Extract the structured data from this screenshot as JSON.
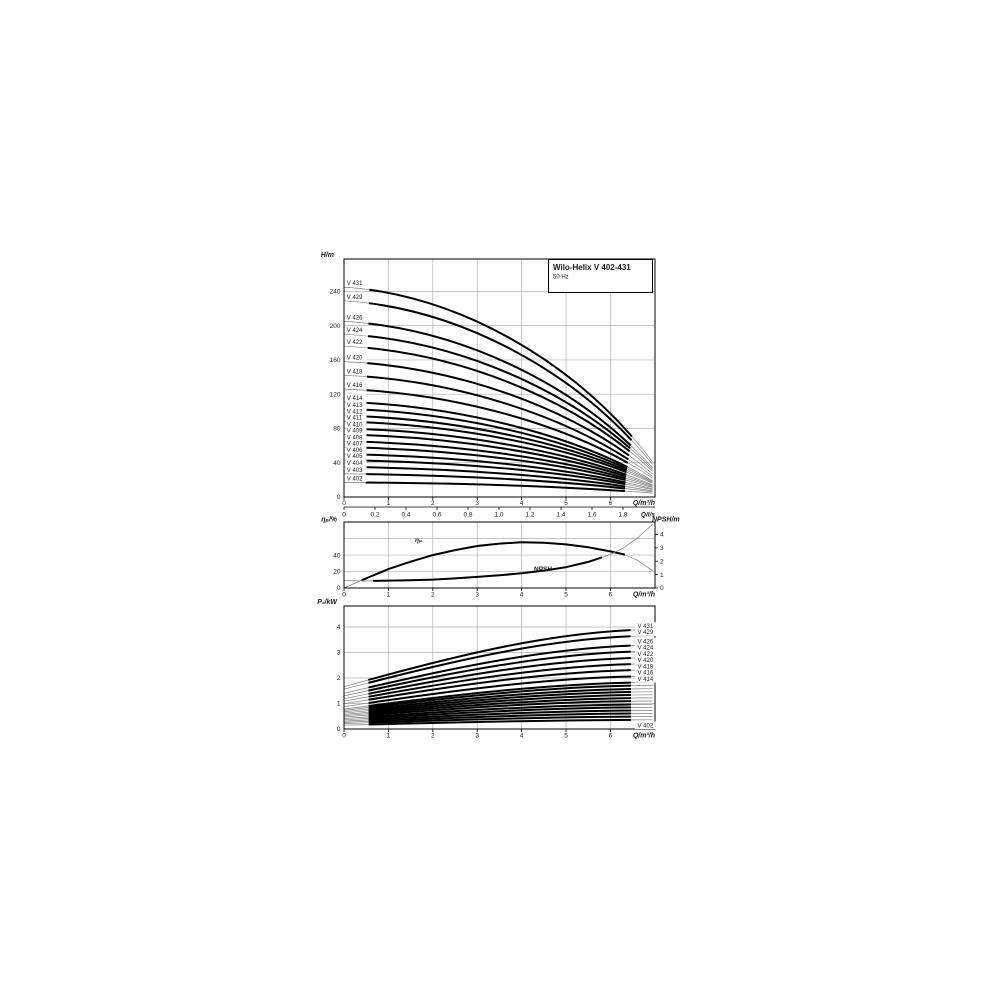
{
  "title_box": {
    "title": "Wilo-Helix V 402-431",
    "subtitle": "50 Hz"
  },
  "chart_data": [
    {
      "id": "head_flow",
      "type": "line",
      "title": "Wilo-Helix V 402-431",
      "subtitle": "50 Hz",
      "ylabel": "H/m",
      "xlabel": "Q/m³/h",
      "xlim": [
        0,
        7
      ],
      "ylim": [
        0,
        278
      ],
      "x_ticks": [
        0,
        1,
        2,
        3,
        4,
        5,
        6
      ],
      "y_ticks": [
        0,
        40,
        80,
        120,
        160,
        200,
        240
      ],
      "grid": "on",
      "secondary_x": {
        "label": "Q/l/s",
        "tick_labels": [
          "0",
          "0,2",
          "0,4",
          "0,6",
          "0,8",
          "1,0",
          "1,2",
          "1,4",
          "1,6",
          "1,8"
        ]
      },
      "series": [
        {
          "name": "V 431",
          "shutoff_head_m": 245,
          "head_at_max_flow_m": 41
        },
        {
          "name": "V 429",
          "shutoff_head_m": 229,
          "head_at_max_flow_m": 38
        },
        {
          "name": "V 426",
          "shutoff_head_m": 205,
          "head_at_max_flow_m": 34
        },
        {
          "name": "V 424",
          "shutoff_head_m": 190,
          "head_at_max_flow_m": 32
        },
        {
          "name": "V 422",
          "shutoff_head_m": 176,
          "head_at_max_flow_m": 30
        },
        {
          "name": "V 420",
          "shutoff_head_m": 158,
          "head_at_max_flow_m": 27
        },
        {
          "name": "V 418",
          "shutoff_head_m": 142,
          "head_at_max_flow_m": 24
        },
        {
          "name": "V 416",
          "shutoff_head_m": 126,
          "head_at_max_flow_m": 22
        },
        {
          "name": "V 414",
          "shutoff_head_m": 111,
          "head_at_max_flow_m": 19
        },
        {
          "name": "V 413",
          "shutoff_head_m": 103,
          "head_at_max_flow_m": 18
        },
        {
          "name": "V 412",
          "shutoff_head_m": 95,
          "head_at_max_flow_m": 17
        },
        {
          "name": "V 411",
          "shutoff_head_m": 88,
          "head_at_max_flow_m": 16
        },
        {
          "name": "V 410",
          "shutoff_head_m": 80,
          "head_at_max_flow_m": 14
        },
        {
          "name": "V 409",
          "shutoff_head_m": 73,
          "head_at_max_flow_m": 13
        },
        {
          "name": "V 408",
          "shutoff_head_m": 65,
          "head_at_max_flow_m": 12
        },
        {
          "name": "V 407",
          "shutoff_head_m": 58,
          "head_at_max_flow_m": 11
        },
        {
          "name": "V 406",
          "shutoff_head_m": 50,
          "head_at_max_flow_m": 9.5
        },
        {
          "name": "V 405",
          "shutoff_head_m": 43,
          "head_at_max_flow_m": 8.5
        },
        {
          "name": "V 404",
          "shutoff_head_m": 35,
          "head_at_max_flow_m": 7
        },
        {
          "name": "V 403",
          "shutoff_head_m": 27,
          "head_at_max_flow_m": 6
        },
        {
          "name": "V 402",
          "shutoff_head_m": 17,
          "head_at_max_flow_m": 4.5
        }
      ]
    },
    {
      "id": "efficiency_npsh",
      "type": "line",
      "ylabel_left": "ηₚ/%",
      "ylabel_right": "NPSH/m",
      "xlabel": "Q/m³/h",
      "xlim": [
        0,
        7
      ],
      "ylim_left": [
        0,
        80
      ],
      "ylim_right": [
        0,
        4.9
      ],
      "x_ticks": [
        0,
        1,
        2,
        3,
        4,
        5,
        6
      ],
      "y_ticks_left": [
        0,
        20,
        40
      ],
      "y_ticks_right": [
        0,
        1,
        2,
        3,
        4
      ],
      "grid": "on",
      "annotations": {
        "eta_label": "ηₚ",
        "npsh_label": "NPSH"
      },
      "series": [
        {
          "name": "ηₚ",
          "axis": "left",
          "points": [
            [
              0,
              0
            ],
            [
              0.3,
              7
            ],
            [
              0.6,
              14
            ],
            [
              1,
              23
            ],
            [
              1.5,
              32
            ],
            [
              2,
              40
            ],
            [
              2.5,
              46
            ],
            [
              3,
              51
            ],
            [
              3.5,
              54
            ],
            [
              4,
              55.5
            ],
            [
              4.5,
              55
            ],
            [
              5,
              53
            ],
            [
              5.5,
              49.5
            ],
            [
              6,
              44.5
            ],
            [
              6.3,
              41
            ],
            [
              6.6,
              34
            ],
            [
              6.95,
              21
            ]
          ]
        },
        {
          "name": "NPSH",
          "axis": "right",
          "points": [
            [
              0,
              0.55
            ],
            [
              0.5,
              0.52
            ],
            [
              1,
              0.55
            ],
            [
              1.5,
              0.58
            ],
            [
              2,
              0.63
            ],
            [
              2.5,
              0.72
            ],
            [
              3,
              0.83
            ],
            [
              3.5,
              0.95
            ],
            [
              4,
              1.1
            ],
            [
              4.5,
              1.3
            ],
            [
              5,
              1.55
            ],
            [
              5.5,
              1.95
            ],
            [
              6,
              2.5
            ],
            [
              6.3,
              3.0
            ],
            [
              6.6,
              3.7
            ],
            [
              6.95,
              4.75
            ]
          ]
        }
      ]
    },
    {
      "id": "power",
      "type": "line",
      "ylabel": "P₂/kW",
      "xlabel": "Q/m³/h",
      "xlim": [
        0,
        7
      ],
      "ylim": [
        0,
        4.8
      ],
      "x_ticks": [
        0,
        1,
        2,
        3,
        4,
        5,
        6
      ],
      "y_ticks": [
        0,
        1,
        2,
        3,
        4
      ],
      "grid": "on",
      "series": [
        {
          "name": "V 431",
          "p2_min_kW": 1.66,
          "p2_max_kW": 3.9,
          "labeled": true,
          "label_side": "above"
        },
        {
          "name": "V 429",
          "p2_min_kW": 1.56,
          "p2_max_kW": 3.66,
          "labeled": true,
          "label_side": "above"
        },
        {
          "name": "V 426",
          "p2_min_kW": 1.4,
          "p2_max_kW": 3.29,
          "labeled": true,
          "label_side": "above"
        },
        {
          "name": "V 424",
          "p2_min_kW": 1.3,
          "p2_max_kW": 3.05,
          "labeled": true,
          "label_side": "above"
        },
        {
          "name": "V 422",
          "p2_min_kW": 1.19,
          "p2_max_kW": 2.8,
          "labeled": true,
          "label_side": "above"
        },
        {
          "name": "V 420",
          "p2_min_kW": 1.09,
          "p2_max_kW": 2.56,
          "labeled": true,
          "label_side": "above"
        },
        {
          "name": "V 418",
          "p2_min_kW": 0.99,
          "p2_max_kW": 2.32,
          "labeled": true,
          "label_side": "above"
        },
        {
          "name": "V 416",
          "p2_min_kW": 0.88,
          "p2_max_kW": 2.07,
          "labeled": true,
          "label_side": "above"
        },
        {
          "name": "V 414",
          "p2_min_kW": 0.78,
          "p2_max_kW": 1.83,
          "labeled": true,
          "label_side": "above"
        },
        {
          "name": "V 413",
          "p2_min_kW": 0.73,
          "p2_max_kW": 1.71,
          "labeled": false,
          "label_side": "above"
        },
        {
          "name": "V 412",
          "p2_min_kW": 0.67,
          "p2_max_kW": 1.58,
          "labeled": false,
          "label_side": "above"
        },
        {
          "name": "V 411",
          "p2_min_kW": 0.62,
          "p2_max_kW": 1.46,
          "labeled": false,
          "label_side": "above"
        },
        {
          "name": "V 410",
          "p2_min_kW": 0.57,
          "p2_max_kW": 1.34,
          "labeled": false,
          "label_side": "above"
        },
        {
          "name": "V 409",
          "p2_min_kW": 0.52,
          "p2_max_kW": 1.22,
          "labeled": false,
          "label_side": "above"
        },
        {
          "name": "V 408",
          "p2_min_kW": 0.47,
          "p2_max_kW": 1.1,
          "labeled": false,
          "label_side": "above"
        },
        {
          "name": "V 407",
          "p2_min_kW": 0.41,
          "p2_max_kW": 0.97,
          "labeled": false,
          "label_side": "above"
        },
        {
          "name": "V 406",
          "p2_min_kW": 0.36,
          "p2_max_kW": 0.85,
          "labeled": false,
          "label_side": "above"
        },
        {
          "name": "V 405",
          "p2_min_kW": 0.31,
          "p2_max_kW": 0.73,
          "labeled": false,
          "label_side": "above"
        },
        {
          "name": "V 404",
          "p2_min_kW": 0.26,
          "p2_max_kW": 0.61,
          "labeled": false,
          "label_side": "above"
        },
        {
          "name": "V 403",
          "p2_min_kW": 0.21,
          "p2_max_kW": 0.49,
          "labeled": false,
          "label_side": "above"
        },
        {
          "name": "V 402",
          "p2_min_kW": 0.15,
          "p2_max_kW": 0.36,
          "labeled": true,
          "label_side": "below"
        }
      ]
    }
  ]
}
